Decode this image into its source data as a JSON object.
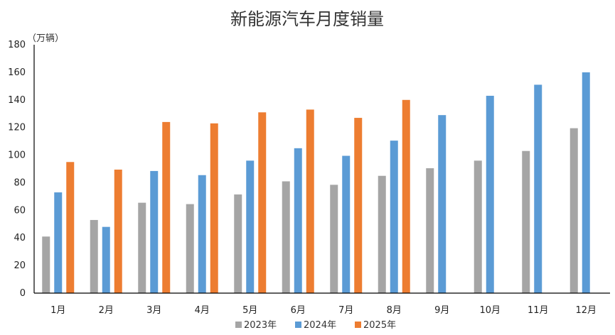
{
  "chart_data": {
    "type": "bar",
    "title": "新能源汽车月度销量",
    "unit_label": "（万辆）",
    "categories": [
      "1月",
      "2月",
      "3月",
      "4月",
      "5月",
      "6月",
      "7月",
      "8月",
      "9月",
      "10月",
      "11月",
      "12月"
    ],
    "series": [
      {
        "name": "2023年",
        "color": "#a5a5a5",
        "values": [
          41,
          53,
          65.5,
          64.5,
          71.5,
          81,
          78.5,
          85,
          90.5,
          96,
          103,
          119.5
        ]
      },
      {
        "name": "2024年",
        "color": "#5b9bd5",
        "values": [
          73,
          48,
          88.5,
          85.5,
          96,
          105,
          99.5,
          110.5,
          129,
          143,
          151,
          160
        ]
      },
      {
        "name": "2025年",
        "color": "#ed7d31",
        "values": [
          95,
          89.5,
          124,
          123,
          131,
          133,
          127,
          140,
          null,
          null,
          null,
          null
        ]
      }
    ],
    "ylim": [
      0,
      180
    ],
    "yticks": [
      0,
      20,
      40,
      60,
      80,
      100,
      120,
      140,
      160,
      180
    ],
    "grid": false,
    "legend_position": "bottom"
  }
}
